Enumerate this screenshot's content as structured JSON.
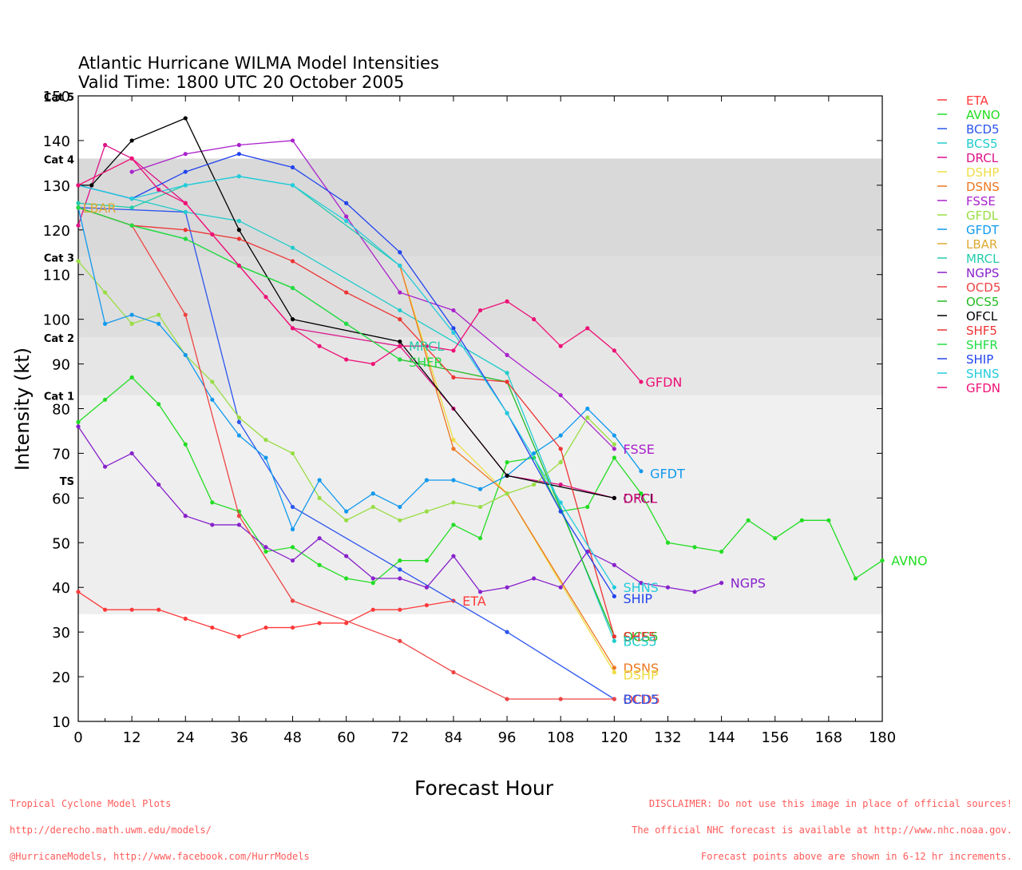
{
  "chart_data": {
    "type": "line",
    "title": "Atlantic Hurricane WILMA Model Intensities",
    "subtitle": "Valid Time: 1800 UTC 20 October 2005",
    "xlabel": "Forecast Hour",
    "ylabel": "Intensity (kt)",
    "xlim": [
      0,
      180
    ],
    "ylim": [
      10,
      150
    ],
    "xticks": [
      0,
      12,
      24,
      36,
      48,
      60,
      72,
      84,
      96,
      108,
      120,
      132,
      144,
      156,
      168,
      180
    ],
    "yticks": [
      10,
      20,
      30,
      40,
      50,
      60,
      70,
      80,
      90,
      100,
      110,
      120,
      130,
      140,
      150
    ],
    "categories": [
      {
        "label": "TS",
        "from": 34,
        "to": 64,
        "color": "#eeeeee"
      },
      {
        "label": "Cat 1",
        "from": 64,
        "to": 83,
        "color": "#f0f0f0"
      },
      {
        "label": "Cat 2",
        "from": 83,
        "to": 96,
        "color": "#e6e6e6"
      },
      {
        "label": "Cat 3",
        "from": 96,
        "to": 114,
        "color": "#dedede"
      },
      {
        "label": "Cat 4",
        "from": 114,
        "to": 136,
        "color": "#d9d9d9"
      },
      {
        "label": "Cat 5",
        "from": 136,
        "to": 150,
        "color": "#ffffff"
      }
    ],
    "series": [
      {
        "name": "ETA",
        "color": "#ff3a3a",
        "label": "ETA",
        "x": [
          0,
          6,
          12,
          18,
          24,
          30,
          36,
          42,
          48,
          54,
          60,
          66,
          72,
          78,
          84
        ],
        "y": [
          39,
          35,
          35,
          35,
          33,
          31,
          29,
          31,
          31,
          32,
          32,
          35,
          35,
          36,
          37
        ]
      },
      {
        "name": "AVNO",
        "color": "#22dd22",
        "label": "AVNO",
        "x": [
          0,
          6,
          12,
          18,
          24,
          30,
          36,
          42,
          48,
          54,
          60,
          66,
          72,
          78,
          84,
          90,
          96,
          102,
          108,
          114,
          120,
          126,
          132,
          138,
          144,
          150,
          156,
          162,
          168,
          174,
          180
        ],
        "y": [
          77,
          82,
          87,
          81,
          72,
          59,
          57,
          48,
          49,
          45,
          42,
          41,
          46,
          46,
          54,
          51,
          68,
          69,
          57,
          58,
          69,
          61,
          50,
          49,
          48,
          55,
          51,
          55,
          55,
          42,
          46
        ]
      },
      {
        "name": "BCD5",
        "color": "#2b55ee",
        "label": "BCD5",
        "x": [
          0,
          24,
          36,
          48,
          72,
          96,
          120
        ],
        "y": [
          125,
          124,
          77,
          58,
          44,
          30,
          15
        ]
      },
      {
        "name": "BCS5",
        "color": "#22cccc",
        "label": "BCS5",
        "x": [
          0,
          24,
          36,
          48,
          72,
          96,
          120
        ],
        "y": [
          130,
          124,
          122,
          116,
          102,
          88,
          28
        ]
      },
      {
        "name": "DRCL",
        "color": "#dd1188",
        "label": "",
        "x": [
          0,
          6,
          12,
          24,
          36,
          48,
          72,
          84,
          96,
          108,
          120
        ],
        "y": [
          121,
          139,
          136,
          126,
          112,
          98,
          94,
          80,
          65,
          63,
          60
        ]
      },
      {
        "name": "DSHP",
        "color": "#eedd44",
        "label": "DSHP",
        "x": [
          72,
          84,
          96,
          120
        ],
        "y": [
          112,
          73,
          61,
          21
        ]
      },
      {
        "name": "DSNS",
        "color": "#ee7722",
        "label": "DSNS",
        "x": [
          72,
          84,
          96,
          120
        ],
        "y": [
          112,
          71,
          61,
          22
        ]
      },
      {
        "name": "FSSE",
        "color": "#aa22cc",
        "label": "FSSE",
        "x": [
          12,
          24,
          36,
          48,
          60,
          72,
          84,
          96,
          108,
          120
        ],
        "y": [
          133,
          137,
          139,
          140,
          123,
          106,
          102,
          92,
          83,
          71
        ]
      },
      {
        "name": "GFDL",
        "color": "#99dd44",
        "label": "",
        "x": [
          0,
          6,
          12,
          18,
          24,
          30,
          36,
          42,
          48,
          54,
          60,
          66,
          72,
          78,
          84,
          90,
          96,
          102,
          108,
          114,
          120
        ],
        "y": [
          113,
          106,
          99,
          101,
          92,
          86,
          78,
          73,
          70,
          60,
          55,
          58,
          55,
          57,
          59,
          58,
          61,
          63,
          68,
          78,
          72
        ]
      },
      {
        "name": "GFDT",
        "color": "#1199ee",
        "label": "GFDT",
        "x": [
          0,
          6,
          12,
          18,
          24,
          30,
          36,
          42,
          48,
          54,
          60,
          66,
          72,
          78,
          84,
          90,
          96,
          102,
          108,
          114,
          120,
          126
        ],
        "y": [
          125,
          99,
          101,
          99,
          92,
          82,
          74,
          69,
          53,
          64,
          57,
          61,
          58,
          64,
          64,
          62,
          65,
          70,
          74,
          80,
          74,
          66
        ]
      },
      {
        "name": "LBAR",
        "color": "#ddaa33",
        "label": "LBAR",
        "x": [],
        "y": []
      },
      {
        "name": "MRCL",
        "color": "#22ccaa",
        "label": "MRCL",
        "x": [
          0,
          12,
          24,
          36,
          48,
          72
        ],
        "y": [
          126,
          125,
          130,
          132,
          130,
          112
        ]
      },
      {
        "name": "NGPS",
        "color": "#8822cc",
        "label": "NGPS",
        "x": [
          0,
          6,
          12,
          18,
          24,
          30,
          36,
          42,
          48,
          54,
          60,
          66,
          72,
          78,
          84,
          90,
          96,
          102,
          108,
          114,
          120,
          126,
          132,
          138,
          144
        ],
        "y": [
          76,
          67,
          70,
          63,
          56,
          54,
          54,
          49,
          46,
          51,
          47,
          42,
          42,
          40,
          47,
          39,
          40,
          42,
          40,
          48,
          45,
          41,
          40,
          39,
          41
        ]
      },
      {
        "name": "OCD5",
        "color": "#ee4444",
        "label": "OCD5",
        "x": [
          0,
          12,
          24,
          36,
          48,
          72,
          84,
          96,
          108,
          120
        ],
        "y": [
          125,
          121,
          101,
          56,
          37,
          28,
          21,
          15,
          15,
          15
        ]
      },
      {
        "name": "OCS5",
        "color": "#22bb22",
        "label": "OCS5",
        "x": [
          0,
          12,
          24,
          36,
          48,
          60,
          72,
          96,
          120
        ],
        "y": [
          125,
          121,
          118,
          112,
          107,
          99,
          91,
          86,
          29
        ]
      },
      {
        "name": "OFCL",
        "color": "#000000",
        "label": "OFCL",
        "x": [
          0,
          3,
          12,
          24,
          36,
          48,
          72,
          96,
          120
        ],
        "y": [
          130,
          130,
          140,
          145,
          120,
          100,
          95,
          65,
          60
        ]
      },
      {
        "name": "SHF5",
        "color": "#ee3333",
        "label": "SHF5",
        "x": [
          0,
          12,
          24,
          36,
          48,
          60,
          72,
          84,
          96,
          108,
          120
        ],
        "y": [
          125,
          121,
          120,
          118,
          113,
          106,
          100,
          87,
          86,
          71,
          29
        ]
      },
      {
        "name": "SHFR",
        "color": "#22dd44",
        "label": "SHFR",
        "x": [
          0,
          12,
          24,
          36,
          48,
          60,
          72
        ],
        "y": [
          125,
          121,
          118,
          112,
          107,
          99,
          91
        ]
      },
      {
        "name": "SHIP",
        "color": "#2244ee",
        "label": "SHIP",
        "x": [
          0,
          12,
          24,
          36,
          48,
          60,
          72,
          84,
          96,
          108,
          120
        ],
        "y": [
          130,
          127,
          133,
          137,
          134,
          126,
          115,
          98,
          79,
          57,
          38
        ]
      },
      {
        "name": "SHNS",
        "color": "#22ccdd",
        "label": "SHNS",
        "x": [
          0,
          12,
          24,
          36,
          48,
          60,
          72,
          84,
          96,
          108,
          120
        ],
        "y": [
          130,
          127,
          130,
          132,
          130,
          122,
          112,
          97,
          79,
          59,
          40
        ]
      },
      {
        "name": "GFDN",
        "color": "#ee1177",
        "label": "GFDN",
        "x": [
          0,
          12,
          18,
          24,
          30,
          36,
          42,
          48,
          54,
          60,
          66,
          72,
          78,
          84,
          90,
          96,
          102,
          108,
          114,
          120,
          126
        ],
        "y": [
          130,
          136,
          129,
          126,
          119,
          112,
          105,
          98,
          94,
          91,
          90,
          94,
          94,
          93,
          102,
          104,
          100,
          94,
          98,
          93,
          86
        ]
      }
    ],
    "end_labels": [
      {
        "text": "GFDN",
        "x": 127,
        "y": 86,
        "color": "#ee1177"
      },
      {
        "text": "FSSE",
        "x": 122,
        "y": 71,
        "color": "#aa22cc"
      },
      {
        "text": "GFDT",
        "x": 128,
        "y": 65.5,
        "color": "#1199ee"
      },
      {
        "text": "OFCL",
        "x": 122,
        "y": 60,
        "color": "#000000"
      },
      {
        "text": "DRCL",
        "x": 122,
        "y": 60,
        "color": "#dd1188"
      },
      {
        "text": "AVNO",
        "x": 182,
        "y": 46,
        "color": "#22dd22"
      },
      {
        "text": "NGPS",
        "x": 146,
        "y": 41,
        "color": "#8822cc"
      },
      {
        "text": "SHNS",
        "x": 122,
        "y": 40,
        "color": "#22ccdd"
      },
      {
        "text": "SHIP",
        "x": 122,
        "y": 37.5,
        "color": "#2244ee"
      },
      {
        "text": "ETA",
        "x": 86,
        "y": 37,
        "color": "#ff3a3a"
      },
      {
        "text": "OCS5",
        "x": 122,
        "y": 29,
        "color": "#22bb22"
      },
      {
        "text": "SHF5",
        "x": 122,
        "y": 29,
        "color": "#ee3333"
      },
      {
        "text": "BCS5",
        "x": 122,
        "y": 28,
        "color": "#22cccc"
      },
      {
        "text": "DSNS",
        "x": 122,
        "y": 22,
        "color": "#ee7722"
      },
      {
        "text": "DSHP",
        "x": 122,
        "y": 20.5,
        "color": "#eedd44"
      },
      {
        "text": "OCD5",
        "x": 122,
        "y": 15,
        "color": "#ee4444"
      },
      {
        "text": "BCD5",
        "x": 122,
        "y": 15,
        "color": "#2b55ee"
      },
      {
        "text": "MRCL",
        "x": 74,
        "y": 94,
        "color": "#22ccaa"
      },
      {
        "text": "SHFR",
        "x": 74,
        "y": 90.5,
        "color": "#22dd44"
      },
      {
        "text": "LBAR",
        "x": 1,
        "y": 125,
        "color": "#ddaa33"
      }
    ]
  },
  "footer": {
    "left_line1": "Tropical Cyclone Model Plots",
    "left_line2": "http://derecho.math.uwm.edu/models/",
    "left_line3": "@HurricaneModels, http://www.facebook.com/HurrModels",
    "right_line1": "DISCLAIMER: Do not use this image in place of official sources!",
    "right_line2": "The official NHC forecast is available at http://www.nhc.noaa.gov.",
    "right_line3": "Forecast points above are shown in 6-12 hr increments."
  }
}
